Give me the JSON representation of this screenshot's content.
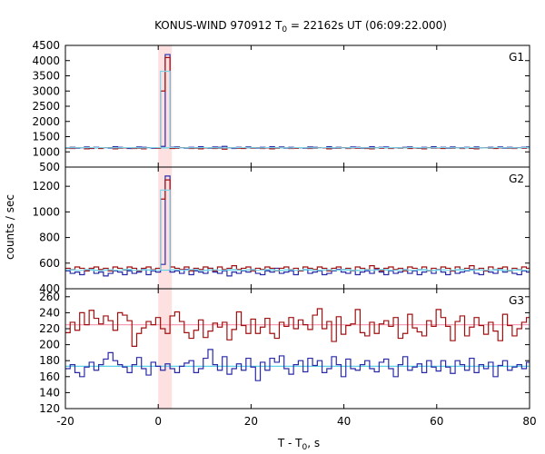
{
  "chart_data": {
    "type": "line",
    "title_main": "KONUS-WIND 970912 T",
    "title_sub": "0",
    "title_rest": " = 22162s UT (06:09:22.000)",
    "xlabel_main": "T - T",
    "xlabel_sub": "0",
    "xlabel_rest": ", s",
    "ylabel": "counts / sec",
    "xlim": [
      -20,
      80
    ],
    "xticks": [
      "-20",
      "0",
      "20",
      "40",
      "60",
      "80"
    ],
    "highlight_interval": [
      0.0,
      2.944
    ],
    "highlight_color": "#fde0e0",
    "grid": false,
    "panels": [
      {
        "name": "G1",
        "ylim": [
          500,
          4500
        ],
        "yticks": [
          "4500",
          "4000",
          "3500",
          "3000",
          "2500",
          "2000",
          "1500",
          "1000",
          "500"
        ],
        "background": 1130,
        "background_color": "#5fd3e8",
        "series": [
          {
            "color": "#2a2aa8",
            "bin": 1.024,
            "start": -20,
            "values": [
              1140,
              1150,
              1120,
              1130,
              1160,
              1110,
              1150,
              1140,
              1130,
              1120,
              1170,
              1150,
              1140,
              1110,
              1130,
              1160,
              1150,
              1140,
              1120,
              1130,
              1180,
              4200,
              1150,
              1160,
              1130,
              1120,
              1150,
              1140,
              1170,
              1130,
              1120,
              1160,
              1150,
              1180,
              1140,
              1110,
              1150,
              1130,
              1160,
              1140,
              1120,
              1150,
              1130,
              1170,
              1140,
              1160,
              1120,
              1150,
              1130,
              1140,
              1120,
              1160,
              1150,
              1130,
              1140,
              1170,
              1120,
              1150,
              1140,
              1130,
              1160,
              1150,
              1120,
              1140,
              1170,
              1130,
              1150,
              1160,
              1120,
              1140,
              1130,
              1150,
              1160,
              1140,
              1120,
              1150,
              1130,
              1170,
              1140,
              1150,
              1120,
              1160,
              1130,
              1140,
              1150,
              1120,
              1160,
              1140,
              1130,
              1150,
              1140,
              1160,
              1120,
              1150,
              1130,
              1140,
              1150,
              1160
            ]
          },
          {
            "color": "#a01010",
            "bin": 1.024,
            "start": -20,
            "values": [
              1120,
              1110,
              1140,
              1130,
              1100,
              1120,
              1140,
              1110,
              1130,
              1140,
              1100,
              1120,
              1130,
              1140,
              1110,
              1120,
              1100,
              1130,
              1140,
              1120,
              3000,
              4100,
              1110,
              1120,
              1140,
              1130,
              1110,
              1120,
              1100,
              1130,
              1140,
              1110,
              1120,
              1090,
              1130,
              1140,
              1120,
              1110,
              1130,
              1120,
              1140,
              1110,
              1130,
              1100,
              1120,
              1140,
              1130,
              1110,
              1120,
              1140,
              1130,
              1110,
              1120,
              1140,
              1130,
              1100,
              1130,
              1120,
              1140,
              1110,
              1130,
              1120,
              1140,
              1110,
              1100,
              1130,
              1120,
              1140,
              1110,
              1130,
              1120,
              1140,
              1110,
              1130,
              1120,
              1100,
              1140,
              1120,
              1130,
              1110,
              1140,
              1120,
              1130,
              1110,
              1140,
              1120,
              1100,
              1130,
              1140,
              1120,
              1110,
              1130,
              1140,
              1120,
              1110,
              1130,
              1120,
              1140
            ]
          },
          {
            "color": "#7fd6ea",
            "bin": 2.048,
            "start": -20,
            "values": [
              1135,
              1135,
              1140,
              1140,
              1130,
              1135,
              1140,
              1135,
              1130,
              1140,
              3650,
              1140,
              1130,
              1135,
              1140,
              1135,
              1130,
              1135,
              1140,
              1135,
              1130,
              1140,
              1135,
              1130,
              1140,
              1135,
              1130,
              1140,
              1135,
              1130,
              1140,
              1135,
              1130,
              1140,
              1135,
              1130,
              1140,
              1135,
              1130,
              1140,
              1135,
              1130,
              1140,
              1135,
              1130,
              1140,
              1135,
              1130,
              1140
            ]
          }
        ]
      },
      {
        "name": "G2",
        "ylim": [
          400,
          1350
        ],
        "yticks": [
          "1200",
          "1000",
          "800",
          "600",
          "400"
        ],
        "background": 545,
        "background_color": "#5fd3e8",
        "series": [
          {
            "color": "#2a2aa8",
            "bin": 1.024,
            "start": -20,
            "values": [
              540,
              520,
              530,
              510,
              540,
              550,
              520,
              530,
              500,
              520,
              540,
              530,
              510,
              540,
              520,
              530,
              550,
              510,
              540,
              530,
              590,
              1280,
              530,
              540,
              520,
              550,
              510,
              540,
              530,
              520,
              560,
              530,
              520,
              540,
              500,
              530,
              520,
              540,
              530,
              550,
              520,
              510,
              540,
              530,
              560,
              520,
              530,
              540,
              510,
              540,
              550,
              520,
              530,
              540,
              510,
              520,
              540,
              550,
              530,
              520,
              540,
              510,
              530,
              540,
              520,
              550,
              530,
              510,
              540,
              520,
              530,
              550,
              520,
              540,
              510,
              530,
              540,
              520,
              550,
              530,
              510,
              540,
              520,
              530,
              540,
              550,
              520,
              510,
              540,
              530,
              520,
              550,
              530,
              540,
              520,
              510,
              540,
              530
            ]
          },
          {
            "color": "#a01010",
            "bin": 1.024,
            "start": -20,
            "values": [
              560,
              550,
              570,
              560,
              540,
              560,
              570,
              550,
              560,
              540,
              570,
              560,
              550,
              570,
              560,
              540,
              560,
              570,
              550,
              560,
              1100,
              1250,
              570,
              560,
              550,
              570,
              540,
              560,
              550,
              570,
              560,
              540,
              570,
              550,
              560,
              580,
              550,
              560,
              570,
              540,
              560,
              550,
              570,
              560,
              540,
              560,
              570,
              550,
              560,
              540,
              570,
              560,
              550,
              570,
              560,
              540,
              560,
              570,
              550,
              560,
              540,
              570,
              560,
              550,
              580,
              560,
              540,
              560,
              570,
              550,
              560,
              540,
              570,
              560,
              550,
              570,
              540,
              560,
              550,
              570,
              560,
              540,
              570,
              550,
              560,
              580,
              550,
              560,
              540,
              570,
              550,
              560,
              570,
              540,
              560,
              550,
              570,
              560
            ]
          },
          {
            "color": "#7fd6ea",
            "bin": 2.048,
            "start": -20,
            "values": [
              548,
              545,
              550,
              542,
              548,
              545,
              552,
              544,
              548,
              546,
              1170,
              548,
              545,
              550,
              542,
              548,
              545,
              550,
              544,
              548,
              545,
              550,
              542,
              548,
              545,
              550,
              544,
              548,
              545,
              550,
              542,
              548,
              545,
              550,
              544,
              548,
              545,
              550,
              542,
              548,
              545,
              550,
              544,
              548,
              545,
              550,
              542,
              548,
              545
            ]
          }
        ]
      },
      {
        "name": "G3",
        "ylim": [
          120,
          270
        ],
        "yticks": [
          "260",
          "240",
          "220",
          "200",
          "180",
          "160",
          "140",
          "120"
        ],
        "background_lines": [
          {
            "value": 225,
            "color": "#f5a0b4"
          },
          {
            "value": 173,
            "color": "#5fd3e8"
          }
        ],
        "series": [
          {
            "color": "#a01010",
            "bin": 1.024,
            "start": -20,
            "values": [
              215,
              228,
              218,
              240,
              225,
              243,
              233,
              226,
              236,
              230,
              218,
              240,
              237,
              230,
              198,
              214,
              221,
              229,
              225,
              234,
              220,
              214,
              236,
              241,
              229,
              215,
              208,
              218,
              231,
              209,
              217,
              227,
              222,
              228,
              206,
              219,
              241,
              224,
              214,
              232,
              214,
              222,
              233,
              214,
              208,
              228,
              223,
              234,
              220,
              231,
              225,
              219,
              237,
              245,
              220,
              229,
              204,
              235,
              213,
              224,
              226,
              244,
              215,
              211,
              228,
              214,
              226,
              230,
              223,
              234,
              208,
              214,
              238,
              221,
              216,
              211,
              230,
              223,
              244,
              234,
              223,
              205,
              229,
              236,
              211,
              222,
              234,
              224,
              213,
              228,
              217,
              205,
              238,
              224,
              211,
              220,
              228,
              234
            ]
          },
          {
            "color": "#2a2aa8",
            "bin": 1.024,
            "start": -20,
            "values": [
              170,
              175,
              165,
              160,
              172,
              178,
              168,
              175,
              182,
              190,
              180,
              175,
              172,
              165,
              175,
              184,
              170,
              162,
              178,
              173,
              168,
              176,
              170,
              165,
              173,
              177,
              180,
              165,
              170,
              183,
              194,
              175,
              168,
              185,
              163,
              170,
              176,
              168,
              183,
              172,
              155,
              178,
              168,
              183,
              178,
              186,
              170,
              163,
              175,
              180,
              166,
              183,
              174,
              180,
              165,
              170,
              185,
              175,
              160,
              182,
              170,
              168,
              175,
              180,
              170,
              166,
              178,
              182,
              170,
              160,
              175,
              185,
              168,
              172,
              176,
              165,
              180,
              172,
              167,
              180,
              172,
              164,
              180,
              175,
              168,
              183,
              165,
              175,
              170,
              178,
              160,
              174,
              180,
              168,
              172,
              175,
              170,
              178
            ]
          }
        ]
      }
    ]
  }
}
